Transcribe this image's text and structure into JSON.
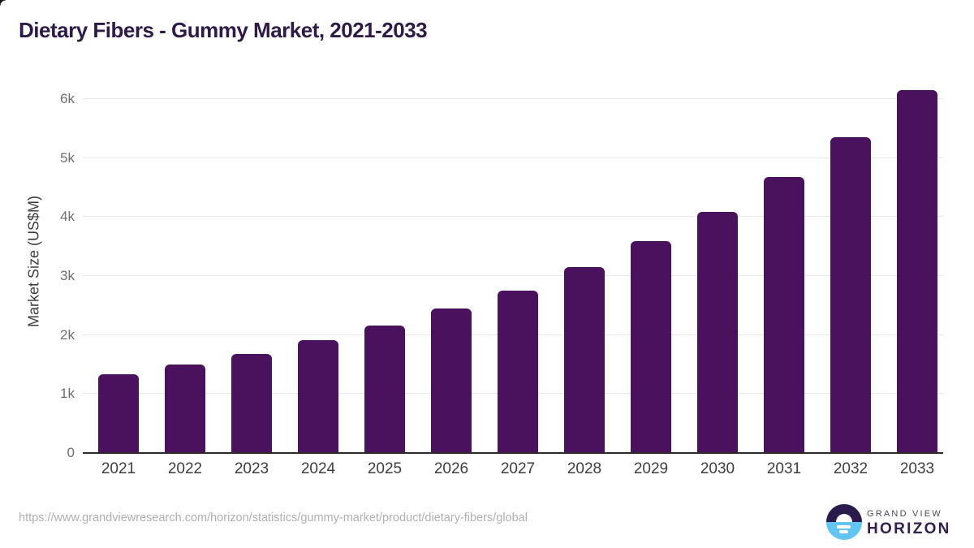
{
  "page": {
    "title": "Dietary Fibers - Gummy Market, 2021-2033",
    "footer": {
      "source_url": "https://www.grandviewresearch.com/horizon/statistics/gummy-market/product/dietary-fibers/global",
      "logo": {
        "icon": "sunrise-horizon-icon",
        "line1": "GRAND VIEW",
        "line2": "HORIZON"
      }
    }
  },
  "chart_data": {
    "type": "bar",
    "title": "Dietary Fibers - Gummy Market, 2021-2033",
    "categories": [
      "2021",
      "2022",
      "2023",
      "2024",
      "2025",
      "2026",
      "2027",
      "2028",
      "2029",
      "2030",
      "2031",
      "2032",
      "2033"
    ],
    "values": [
      1335,
      1505,
      1685,
      1910,
      2160,
      2450,
      2755,
      3150,
      3595,
      4090,
      4680,
      5350,
      6150
    ],
    "xlabel": "",
    "ylabel": "Market Size (US$M)",
    "ylim": [
      0,
      6330
    ],
    "yticks": {
      "values": [
        0,
        1000,
        2000,
        3000,
        4000,
        5000,
        6000
      ],
      "labels": [
        "0",
        "1k",
        "2k",
        "3k",
        "4k",
        "5k",
        "6k"
      ]
    },
    "grid": "horizontal",
    "legend": false,
    "bar_color": "#4a115c"
  },
  "colors": {
    "bar": "#4a115c",
    "title_text": "#2e1a47",
    "grid_line": "#e8e8e8",
    "axis_line": "#2b2b2b",
    "x_tick_text": "#3e3e3e",
    "y_tick_text": "#6e6e6e",
    "axis_title_text": "#3e3e3e",
    "url_text": "#b0b0b0",
    "logo_top_half": "#2b1b4d",
    "logo_bottom_half": "#62c5f2",
    "brand_line1_text": "#4f4857",
    "brand_line2_text": "#33204e"
  }
}
